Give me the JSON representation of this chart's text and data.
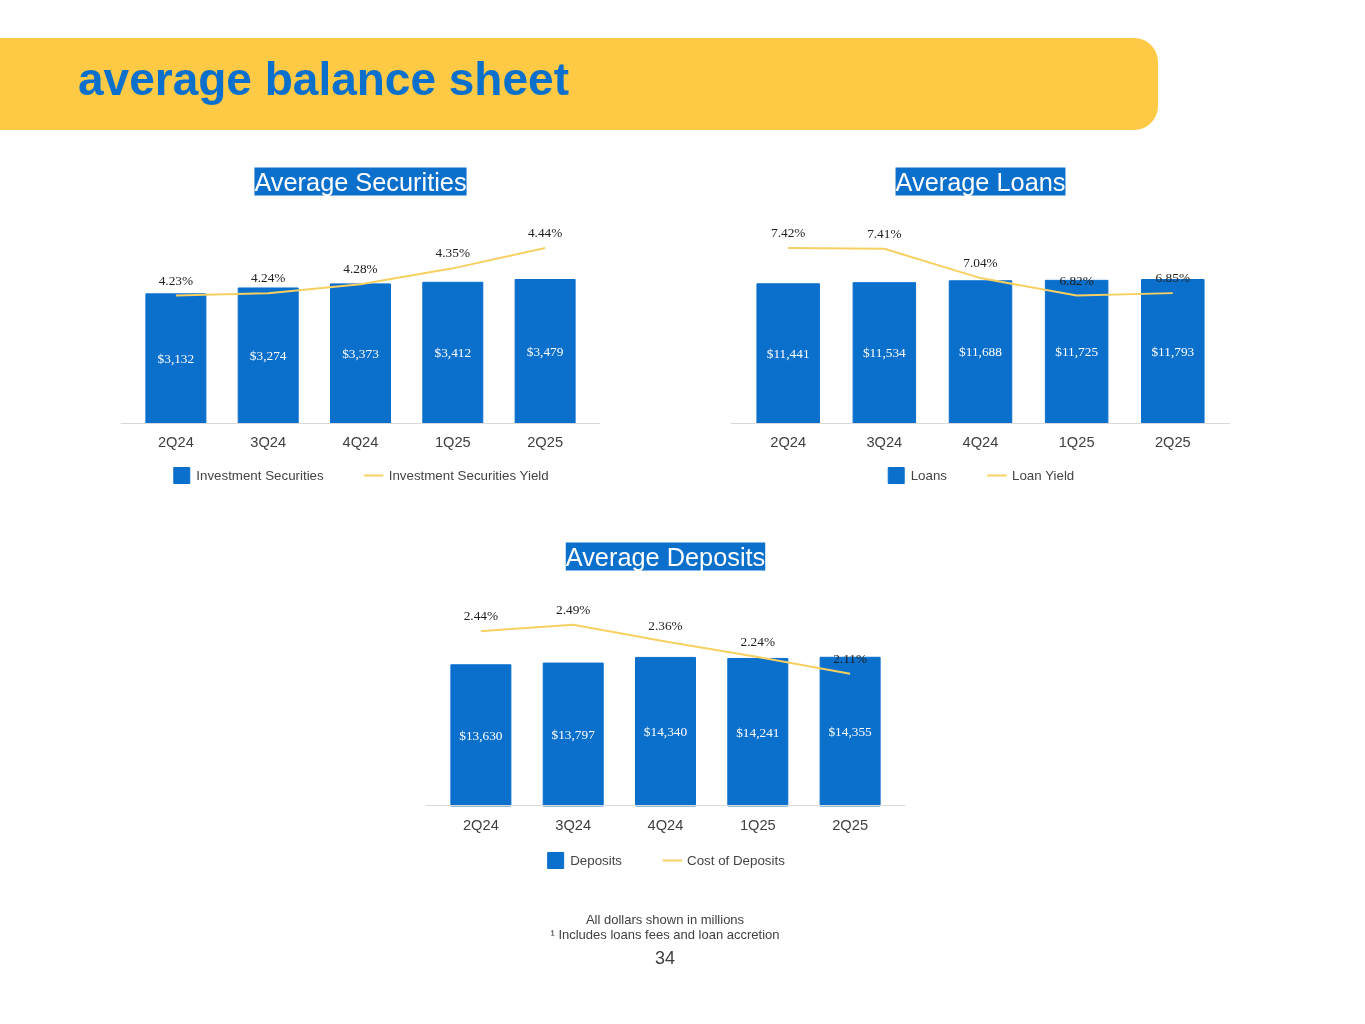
{
  "chart_data": [
    {
      "type": "bar",
      "title": "Average Securities",
      "annotations": [
        "average balance sheet"
      ],
      "categories": [
        "2Q24",
        "3Q24",
        "4Q24",
        "1Q25",
        "2Q25"
      ],
      "legend": "bottom",
      "tick_labels": "x",
      "series": [
        {
          "name": "Investment Securities",
          "color": "#0b6fcc",
          "values": [
            3132,
            3274,
            3373,
            3412,
            3479
          ],
          "value_labels": [
            "$3,132",
            "$3,274",
            "$3,373",
            "$3,412",
            "$3,479"
          ]
        },
        {
          "name": "Investment Securities Yield",
          "type": "line",
          "axis": "y2",
          "color": "#f7d061",
          "values": [
            4.23,
            4.24,
            4.28,
            4.35,
            4.44
          ],
          "value_labels": [
            "4.23%",
            "4.24%",
            "4.28%",
            "4.35%",
            "4.44%"
          ]
        }
      ]
    },
    {
      "type": "bar",
      "title": "Average Loans",
      "categories": [
        "2Q24",
        "3Q24",
        "4Q24",
        "1Q25",
        "2Q25"
      ],
      "legend": "bottom",
      "tick_labels": "x",
      "series": [
        {
          "name": "Loans",
          "color": "#0b6fcc",
          "values": [
            11441,
            11534,
            11688,
            11725,
            11793
          ],
          "value_labels": [
            "$11,441",
            "$11,534",
            "$11,688",
            "$11,725",
            "$11,793"
          ]
        },
        {
          "name": "Loan Yield",
          "type": "line",
          "axis": "y2",
          "color": "#f7d061",
          "values": [
            7.42,
            7.41,
            7.04,
            6.82,
            6.85
          ],
          "value_labels": [
            "7.42%",
            "7.41%",
            "7.04%",
            "6.82%",
            "6.85%"
          ]
        }
      ]
    },
    {
      "type": "bar",
      "title": "Average Deposits",
      "annotations": [
        "All dollars shown in millions",
        "¹ Includes loans fees and loan accretion",
        "34"
      ],
      "categories": [
        "2Q24",
        "3Q24",
        "4Q24",
        "1Q25",
        "2Q25"
      ],
      "legend": "bottom",
      "tick_labels": "x",
      "series": [
        {
          "name": "Deposits",
          "color": "#0b6fcc",
          "values": [
            13630,
            13797,
            14340,
            14241,
            14355
          ],
          "value_labels": [
            "$13,630",
            "$13,797",
            "$14,340",
            "$14,241",
            "$14,355"
          ]
        },
        {
          "name": "Cost of Deposits",
          "type": "line",
          "axis": "y2",
          "color": "#f7d061",
          "values": [
            2.44,
            2.49,
            2.36,
            2.24,
            2.11
          ],
          "value_labels": [
            "2.44%",
            "2.49%",
            "2.36%",
            "2.24%",
            "2.11%"
          ]
        }
      ]
    }
  ]
}
